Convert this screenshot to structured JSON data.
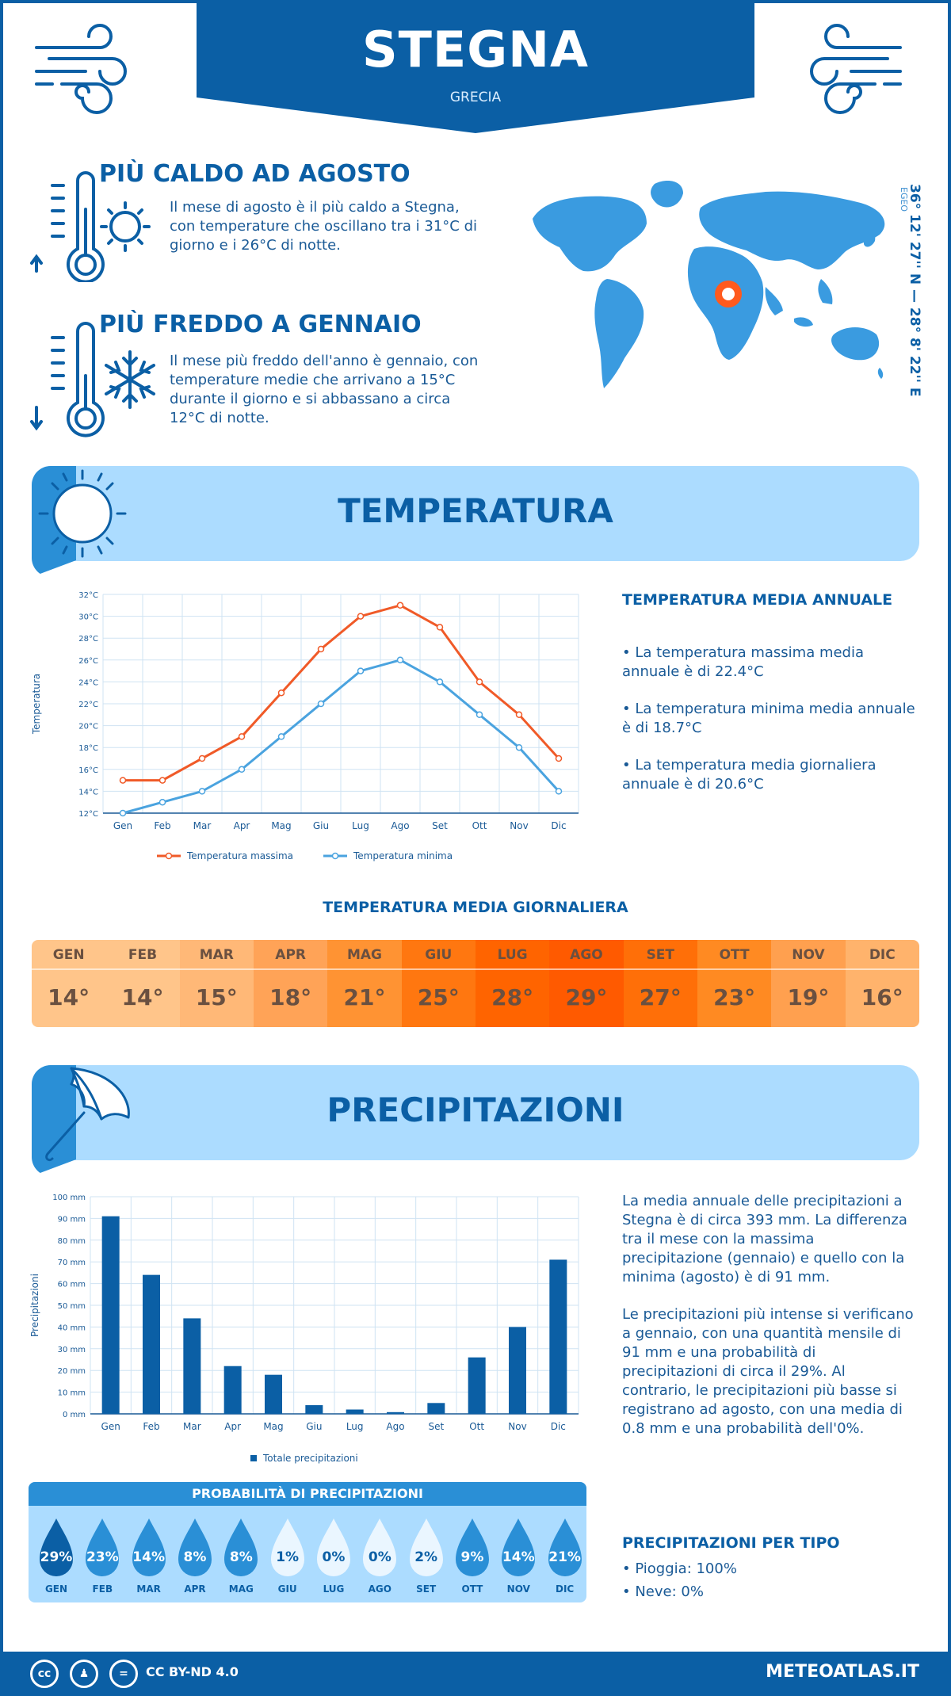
{
  "header": {
    "city": "STEGNA",
    "country": "GRECIA"
  },
  "hot": {
    "title": "PIÙ CALDO AD AGOSTO",
    "text": "Il mese di agosto è il più caldo a Stegna, con temperature che oscillano tra i 31°C di giorno e i 26°C di notte."
  },
  "cold": {
    "title": "PIÙ FREDDO A GENNAIO",
    "text": "Il mese più freddo dell'anno è gennaio, con temperature medie che arrivano a 15°C durante il giorno e si abbassano a circa 12°C di notte."
  },
  "coords": {
    "value": "36° 12' 27'' N — 28° 8' 22'' E",
    "region": "EGEO"
  },
  "temperature": {
    "section_title": "TEMPERATURA",
    "annual_title": "TEMPERATURA MEDIA ANNUALE",
    "annual_max": "• La temperatura massima media annuale è di 22.4°C",
    "annual_min": "• La temperatura minima media annuale è di 18.7°C",
    "annual_avg": "• La temperatura media giornaliera annuale è di 20.6°C",
    "daily_title": "TEMPERATURA MEDIA GIORNALIERA",
    "daily": [
      {
        "m": "GEN",
        "v": "14°",
        "c": "#ffc58a"
      },
      {
        "m": "FEB",
        "v": "14°",
        "c": "#ffc58a"
      },
      {
        "m": "MAR",
        "v": "15°",
        "c": "#ffb877"
      },
      {
        "m": "APR",
        "v": "18°",
        "c": "#ffa357"
      },
      {
        "m": "MAG",
        "v": "21°",
        "c": "#ff9333"
      },
      {
        "m": "GIU",
        "v": "25°",
        "c": "#ff7710"
      },
      {
        "m": "LUG",
        "v": "28°",
        "c": "#ff6400"
      },
      {
        "m": "AGO",
        "v": "29°",
        "c": "#ff5a00"
      },
      {
        "m": "SET",
        "v": "27°",
        "c": "#ff6f08"
      },
      {
        "m": "OTT",
        "v": "23°",
        "c": "#ff8a22"
      },
      {
        "m": "NOV",
        "v": "19°",
        "c": "#ffa04f"
      },
      {
        "m": "DIC",
        "v": "16°",
        "c": "#ffb36c"
      }
    ]
  },
  "precipitation": {
    "section_title": "PRECIPITAZIONI",
    "text1": "La media annuale delle precipitazioni a Stegna è di circa 393 mm. La differenza tra il mese con la massima precipitazione (gennaio) e quello con la minima (agosto) è di 91 mm.",
    "text2": "Le precipitazioni più intense si verificano a gennaio, con una quantità mensile di 91 mm e una probabilità di precipitazioni di circa il 29%. Al contrario, le precipitazioni più basse si registrano ad agosto, con una media di 0.8 mm e una probabilità dell'0%.",
    "prob_title": "PROBABILITÀ DI PRECIPITAZIONI",
    "prob": [
      {
        "m": "GEN",
        "v": "29%",
        "p": 29
      },
      {
        "m": "FEB",
        "v": "23%",
        "p": 23
      },
      {
        "m": "MAR",
        "v": "14%",
        "p": 14
      },
      {
        "m": "APR",
        "v": "8%",
        "p": 8
      },
      {
        "m": "MAG",
        "v": "8%",
        "p": 8
      },
      {
        "m": "GIU",
        "v": "1%",
        "p": 1
      },
      {
        "m": "LUG",
        "v": "0%",
        "p": 0
      },
      {
        "m": "AGO",
        "v": "0%",
        "p": 0
      },
      {
        "m": "SET",
        "v": "2%",
        "p": 2
      },
      {
        "m": "OTT",
        "v": "9%",
        "p": 9
      },
      {
        "m": "NOV",
        "v": "14%",
        "p": 14
      },
      {
        "m": "DIC",
        "v": "21%",
        "p": 21
      }
    ],
    "type_title": "PRECIPITAZIONI PER TIPO",
    "rain": "• Pioggia: 100%",
    "snow": "• Neve: 0%"
  },
  "footer": {
    "license": "CC BY-ND 4.0",
    "site": "METEOATLAS.IT"
  },
  "colors": {
    "primary": "#0b5fa5",
    "light": "#acdcff",
    "max_line": "#f05a28",
    "min_line": "#4aa3df",
    "bar": "#0b5fa5"
  },
  "chart_data": [
    {
      "type": "line",
      "x": [
        "Gen",
        "Feb",
        "Mar",
        "Apr",
        "Mag",
        "Giu",
        "Lug",
        "Ago",
        "Set",
        "Ott",
        "Nov",
        "Dic"
      ],
      "series": [
        {
          "name": "Temperatura massima",
          "values": [
            15,
            15,
            17,
            19,
            23,
            27,
            30,
            31,
            29,
            24,
            21,
            17
          ]
        },
        {
          "name": "Temperatura minima",
          "values": [
            12,
            13,
            14,
            16,
            19,
            22,
            25,
            26,
            24,
            21,
            18,
            14
          ]
        }
      ],
      "ylabel": "Temperatura",
      "ylim": [
        12,
        32
      ],
      "yticks": [
        "12°C",
        "14°C",
        "16°C",
        "18°C",
        "20°C",
        "22°C",
        "24°C",
        "26°C",
        "28°C",
        "30°C",
        "32°C"
      ],
      "grid": true,
      "legend": "bottom"
    },
    {
      "type": "bar",
      "categories": [
        "Gen",
        "Feb",
        "Mar",
        "Apr",
        "Mag",
        "Giu",
        "Lug",
        "Ago",
        "Set",
        "Ott",
        "Nov",
        "Dic"
      ],
      "series": [
        {
          "name": "Totale precipitazioni",
          "values": [
            91,
            64,
            44,
            22,
            18,
            4,
            2,
            0.8,
            5,
            26,
            40,
            71
          ]
        }
      ],
      "ylabel": "Precipitazioni",
      "ylim": [
        0,
        100
      ],
      "yticks": [
        "0 mm",
        "10 mm",
        "20 mm",
        "30 mm",
        "40 mm",
        "50 mm",
        "60 mm",
        "70 mm",
        "80 mm",
        "90 mm",
        "100 mm"
      ],
      "grid": true,
      "legend": "bottom"
    }
  ]
}
